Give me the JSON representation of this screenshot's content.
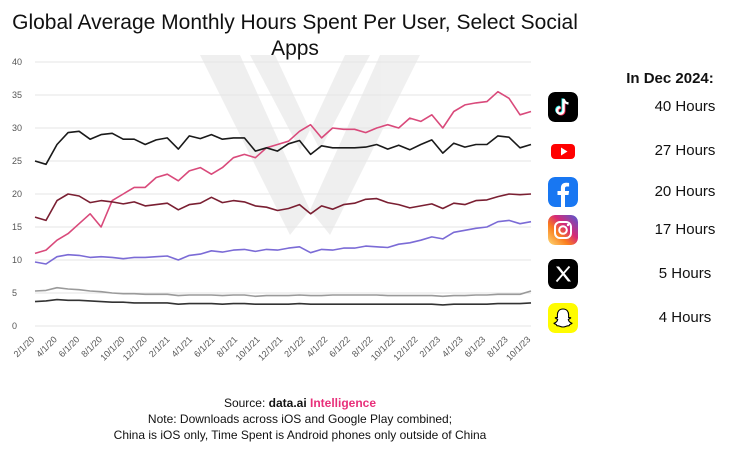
{
  "chart_data": {
    "type": "line",
    "title": "Global Average Monthly Hours Spent Per User, Select Social Apps",
    "xlabel": "",
    "ylabel": "",
    "ylim": [
      0,
      40
    ],
    "yticks": [
      "0",
      "5",
      "10",
      "15",
      "20",
      "25",
      "30",
      "35",
      "40"
    ],
    "grid": true,
    "x_tick_labels": [
      "2/1/20",
      "4/1/20",
      "6/1/20",
      "8/1/20",
      "10/1/20",
      "12/1/20",
      "2/1/21",
      "4/1/21",
      "6/1/21",
      "8/1/21",
      "10/1/21",
      "12/1/21",
      "2/1/22",
      "4/1/22",
      "6/1/22",
      "8/1/22",
      "10/1/22",
      "12/1/22",
      "2/1/23",
      "4/1/23",
      "6/1/23",
      "8/1/23",
      "10/1/23"
    ],
    "series": [
      {
        "name": "TikTok",
        "color": "#d94a7b",
        "values": [
          11,
          11.5,
          13,
          14,
          15.5,
          17,
          15,
          19,
          20,
          21,
          21,
          22.5,
          23,
          22,
          23.5,
          24,
          23,
          24,
          25.5,
          26,
          25.5,
          27,
          27.5,
          28,
          29.5,
          30.5,
          28.5,
          30,
          29.8,
          29.8,
          29.3,
          30,
          30.5,
          30,
          31.5,
          31,
          32,
          30,
          32.5,
          33.5,
          33.8,
          34,
          35.5,
          34.5,
          32,
          32.5
        ]
      },
      {
        "name": "YouTube",
        "color": "#1a1a1a",
        "values": [
          25,
          24.5,
          27.5,
          29.3,
          29.5,
          28.3,
          29,
          29.2,
          28.3,
          28.3,
          27.5,
          28.2,
          28.5,
          26.8,
          28.8,
          28.4,
          29,
          28.3,
          28.5,
          28.5,
          26.5,
          27,
          26.5,
          27.6,
          28.1,
          26,
          27.3,
          27,
          27,
          27,
          27.1,
          27.5,
          26.8,
          27.4,
          26.7,
          27.5,
          28.2,
          26.2,
          27.7,
          27.1,
          27.5,
          27.5,
          28.8,
          28.6,
          27,
          27.5
        ]
      },
      {
        "name": "Facebook",
        "color": "#7a1f32",
        "values": [
          16.5,
          16,
          19,
          20,
          19.7,
          18.7,
          19,
          18.8,
          18.5,
          18.8,
          18.2,
          18.4,
          18.6,
          17.6,
          18.4,
          18.6,
          19.5,
          18.7,
          19,
          18.8,
          18.2,
          18,
          17.5,
          17.8,
          18.4,
          17,
          18.2,
          17.7,
          18.4,
          18.6,
          19.2,
          19.3,
          18.7,
          18.4,
          17.9,
          18.2,
          18.5,
          17.8,
          18.6,
          18.4,
          19,
          19.1,
          19.6,
          20,
          19.9,
          20
        ]
      },
      {
        "name": "Instagram",
        "color": "#7b6bd6",
        "values": [
          9.7,
          9.4,
          10.5,
          10.8,
          10.7,
          10.4,
          10.5,
          10.4,
          10.2,
          10.4,
          10.4,
          10.5,
          10.6,
          10,
          10.7,
          10.9,
          11.4,
          11.2,
          11.5,
          11.6,
          11.3,
          11.6,
          11.5,
          11.8,
          12,
          11.1,
          11.6,
          11.5,
          11.8,
          11.8,
          12.1,
          12,
          11.9,
          12.4,
          12.6,
          13,
          13.5,
          13.2,
          14.2,
          14.5,
          14.8,
          15,
          15.8,
          16,
          15.5,
          15.8
        ]
      },
      {
        "name": "X",
        "color": "#9a9a9a",
        "values": [
          5.3,
          5.4,
          5.8,
          5.6,
          5.5,
          5.3,
          5.2,
          5,
          4.9,
          4.9,
          4.8,
          4.8,
          4.8,
          4.6,
          4.7,
          4.7,
          4.7,
          4.6,
          4.7,
          4.7,
          4.5,
          4.6,
          4.6,
          4.6,
          4.7,
          4.6,
          4.6,
          4.7,
          4.7,
          4.7,
          4.7,
          4.7,
          4.6,
          4.6,
          4.6,
          4.6,
          4.6,
          4.5,
          4.6,
          4.6,
          4.7,
          4.7,
          4.8,
          4.8,
          4.8,
          5.3
        ]
      },
      {
        "name": "Snapchat",
        "color": "#333333",
        "values": [
          3.7,
          3.8,
          4,
          3.9,
          3.9,
          3.8,
          3.7,
          3.6,
          3.6,
          3.5,
          3.5,
          3.5,
          3.5,
          3.3,
          3.4,
          3.4,
          3.4,
          3.3,
          3.4,
          3.4,
          3.3,
          3.3,
          3.3,
          3.3,
          3.4,
          3.3,
          3.3,
          3.3,
          3.3,
          3.3,
          3.3,
          3.3,
          3.3,
          3.3,
          3.3,
          3.3,
          3.3,
          3.2,
          3.3,
          3.3,
          3.3,
          3.3,
          3.4,
          3.4,
          3.4,
          3.5
        ]
      }
    ]
  },
  "side_panel": {
    "heading": "In Dec 2024:",
    "apps": [
      {
        "app": "TikTok",
        "icon": "tiktok-icon",
        "hours": "40 Hours"
      },
      {
        "app": "YouTube",
        "icon": "youtube-icon",
        "hours": "27 Hours"
      },
      {
        "app": "Facebook",
        "icon": "facebook-icon",
        "hours": "20 Hours"
      },
      {
        "app": "Instagram",
        "icon": "instagram-icon",
        "hours": "17 Hours"
      },
      {
        "app": "X",
        "icon": "x-icon",
        "hours": "5 Hours"
      },
      {
        "app": "Snapchat",
        "icon": "snapchat-icon",
        "hours": "4 Hours"
      }
    ]
  },
  "footer": {
    "source_prefix": "Source: ",
    "source_brand": "data.ai",
    "source_accent": "Intelligence",
    "note_line1": "Note: Downloads across iOS and Google Play combined;",
    "note_line2": "China is iOS only, Time Spent is Android phones only outside of China"
  }
}
